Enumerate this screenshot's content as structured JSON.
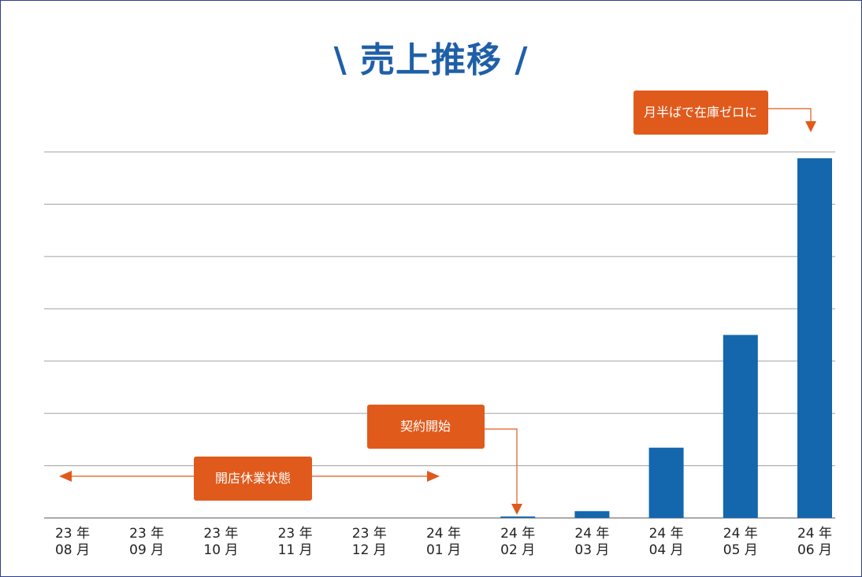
{
  "chart_data": {
    "type": "bar",
    "title": "\\ 売上推移 /",
    "categories": [
      [
        "23 年",
        "08 月"
      ],
      [
        "23 年",
        "09 月"
      ],
      [
        "23 年",
        "10 月"
      ],
      [
        "23 年",
        "11 月"
      ],
      [
        "23 年",
        "12 月"
      ],
      [
        "24 年",
        "01 月"
      ],
      [
        "24 年",
        "02 月"
      ],
      [
        "24 年",
        "03 月"
      ],
      [
        "24 年",
        "04 月"
      ],
      [
        "24 年",
        "05 月"
      ],
      [
        "24 年",
        "06 月"
      ]
    ],
    "values": [
      0,
      0,
      0,
      0,
      0,
      0,
      0.03,
      0.14,
      1.44,
      3.75,
      7.37
    ],
    "ylim": [
      0,
      7.5
    ],
    "grid": true,
    "colors": {
      "bar": "#1466ad",
      "callout": "#e05a1c",
      "grid": "#a0a0a0",
      "title": "#1f5fa8"
    },
    "annotations": {
      "closed": "開店休業状態",
      "contract": "契約開始",
      "soldout": "月半ばで在庫ゼロに"
    }
  }
}
